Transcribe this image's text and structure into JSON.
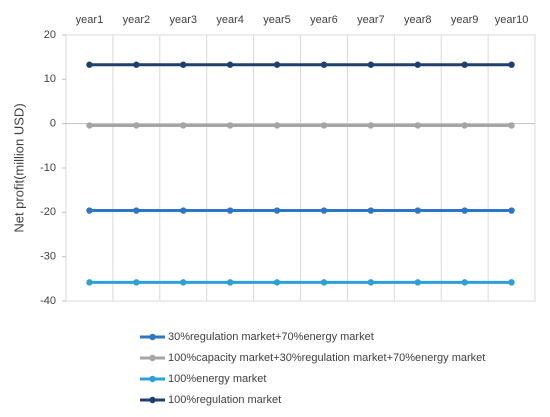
{
  "chart_data": {
    "type": "line",
    "y_label": "Net profit(million USD)",
    "categories": [
      "year1",
      "year2",
      "year3",
      "year4",
      "year5",
      "year6",
      "year7",
      "year8",
      "year9",
      "year10"
    ],
    "series": [
      {
        "name": "30%regulation market+70%energy market",
        "color": "#2e75c6",
        "values": [
          -19.6,
          -19.6,
          -19.6,
          -19.6,
          -19.6,
          -19.6,
          -19.6,
          -19.6,
          -19.6,
          -19.6
        ]
      },
      {
        "name": "100%capacity market+30%regulation market+70%energy market",
        "color": "#a5a5a5",
        "values": [
          -0.4,
          -0.4,
          -0.4,
          -0.4,
          -0.4,
          -0.4,
          -0.4,
          -0.4,
          -0.4,
          -0.4
        ]
      },
      {
        "name": "100%energy market",
        "color": "#2e9fd9",
        "values": [
          -35.8,
          -35.8,
          -35.8,
          -35.8,
          -35.8,
          -35.8,
          -35.8,
          -35.8,
          -35.8,
          -35.8
        ]
      },
      {
        "name": "100%regulation market",
        "color": "#1f3f6e",
        "values": [
          13.3,
          13.3,
          13.3,
          13.3,
          13.3,
          13.3,
          13.3,
          13.3,
          13.3,
          13.3
        ]
      }
    ],
    "ylim": [
      -40,
      20
    ],
    "yticks": [
      -40,
      -30,
      -20,
      -10,
      0,
      10,
      20
    ],
    "grid": true,
    "legend": "bottom"
  }
}
